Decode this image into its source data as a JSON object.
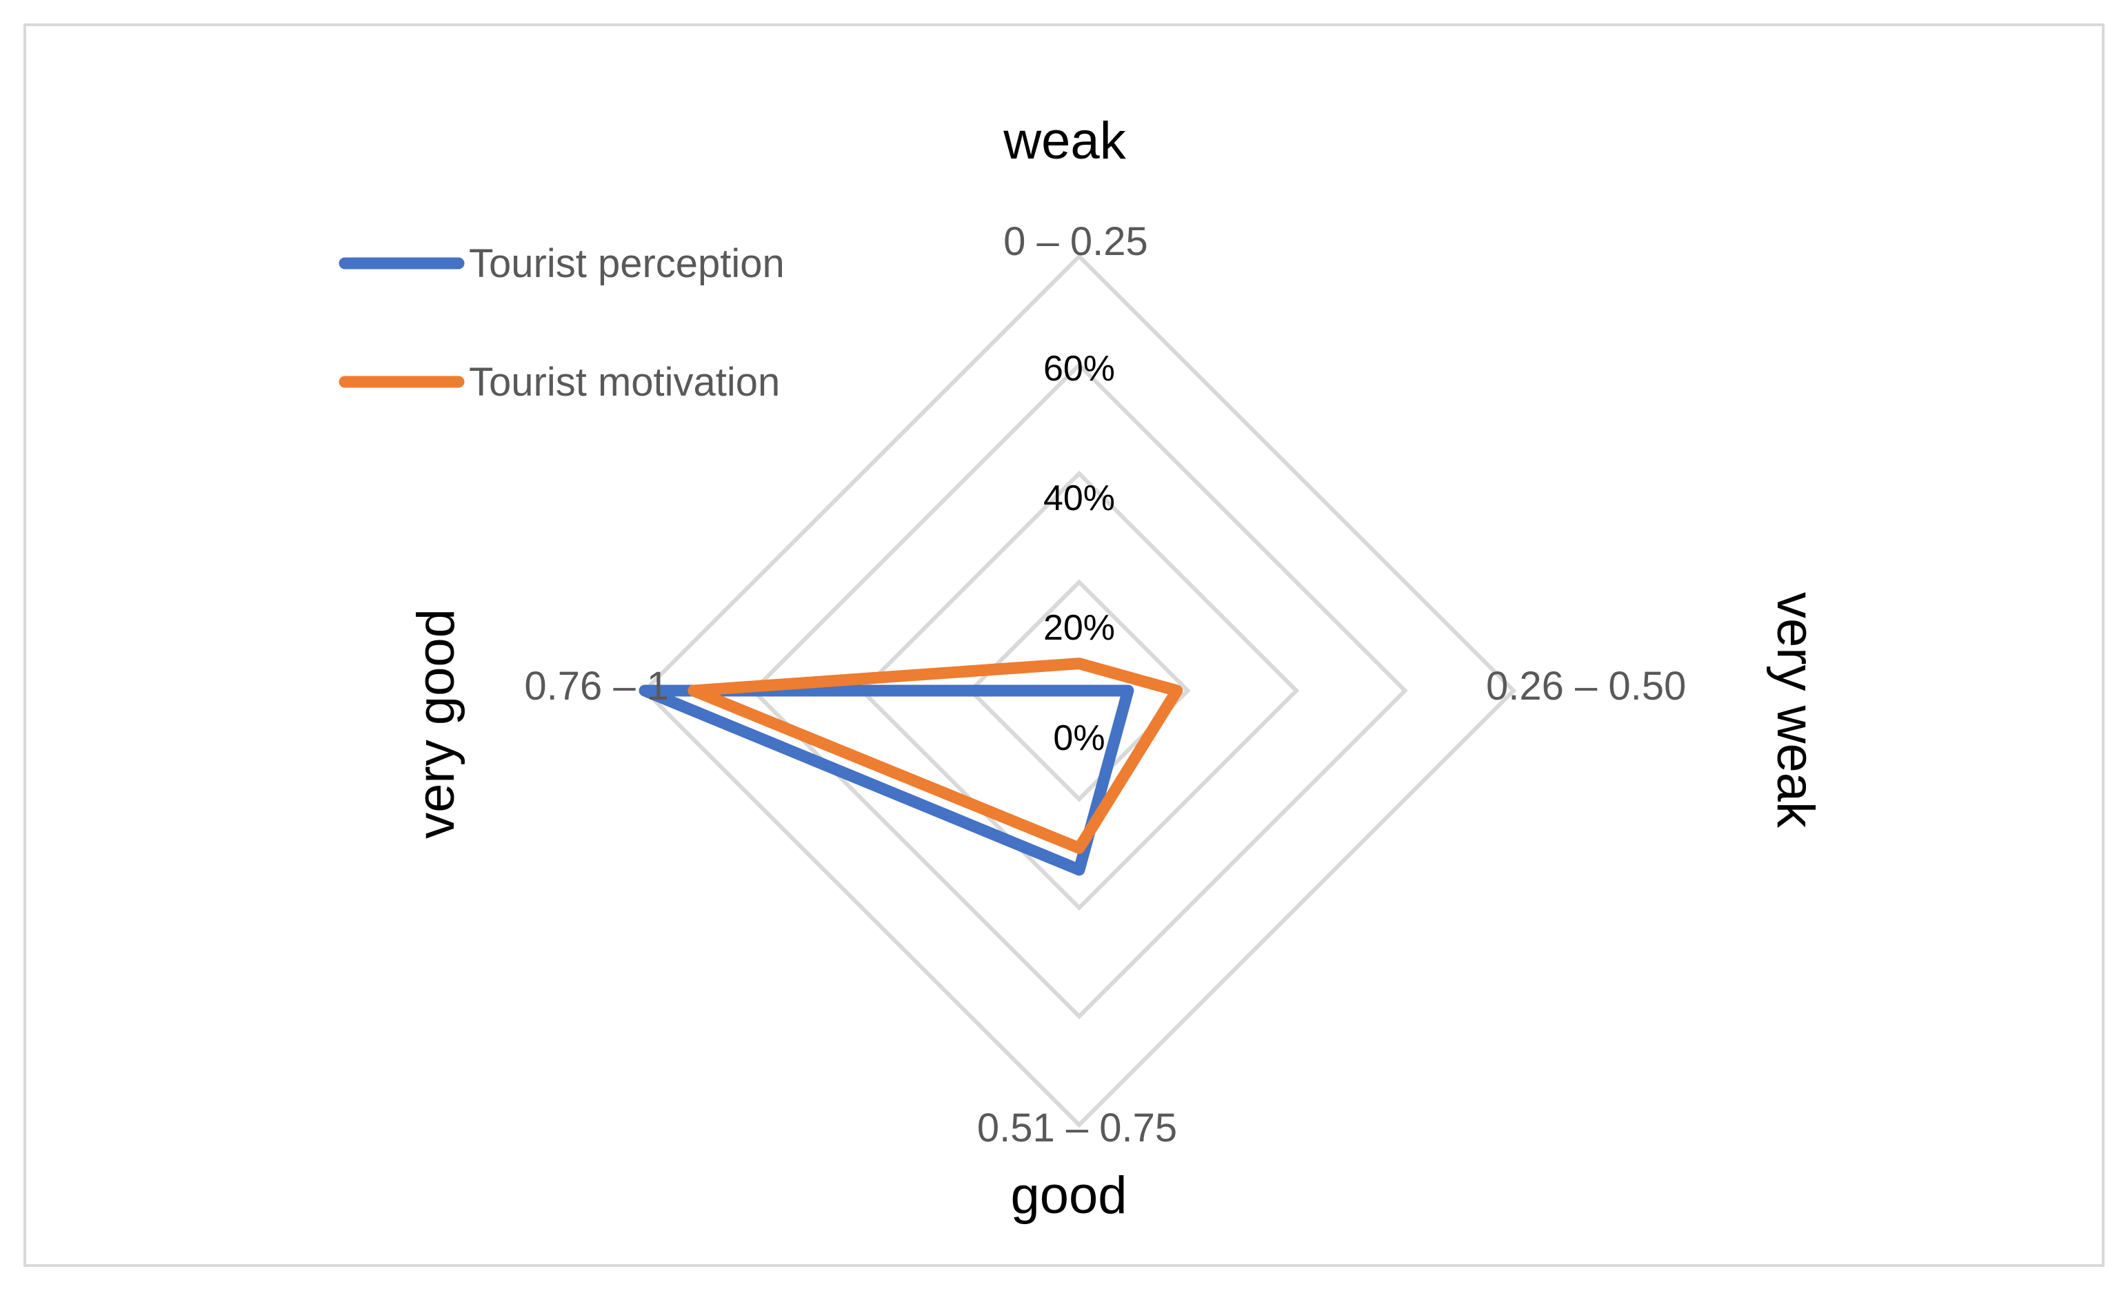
{
  "chart_data": {
    "type": "radar",
    "axes": [
      {
        "range": "0 – 0.25",
        "rating": "weak"
      },
      {
        "range": "0.26 – 0.50",
        "rating": "very weak"
      },
      {
        "range": "0.51 – 0.75",
        "rating": "good"
      },
      {
        "range": "0.76 – 1",
        "rating": "very good"
      }
    ],
    "rings": [
      0,
      20,
      40,
      60,
      80
    ],
    "ring_labels": [
      "0%",
      "20%",
      "40%",
      "60%"
    ],
    "rmax": 80,
    "series": [
      {
        "name": "Tourist perception",
        "color": "#4472c4",
        "values": [
          0,
          9,
          33,
          80
        ]
      },
      {
        "name": "Tourist motivation",
        "color": "#ed7d31",
        "values": [
          5,
          18,
          29,
          71
        ]
      }
    ],
    "legend_position": "top-left"
  }
}
